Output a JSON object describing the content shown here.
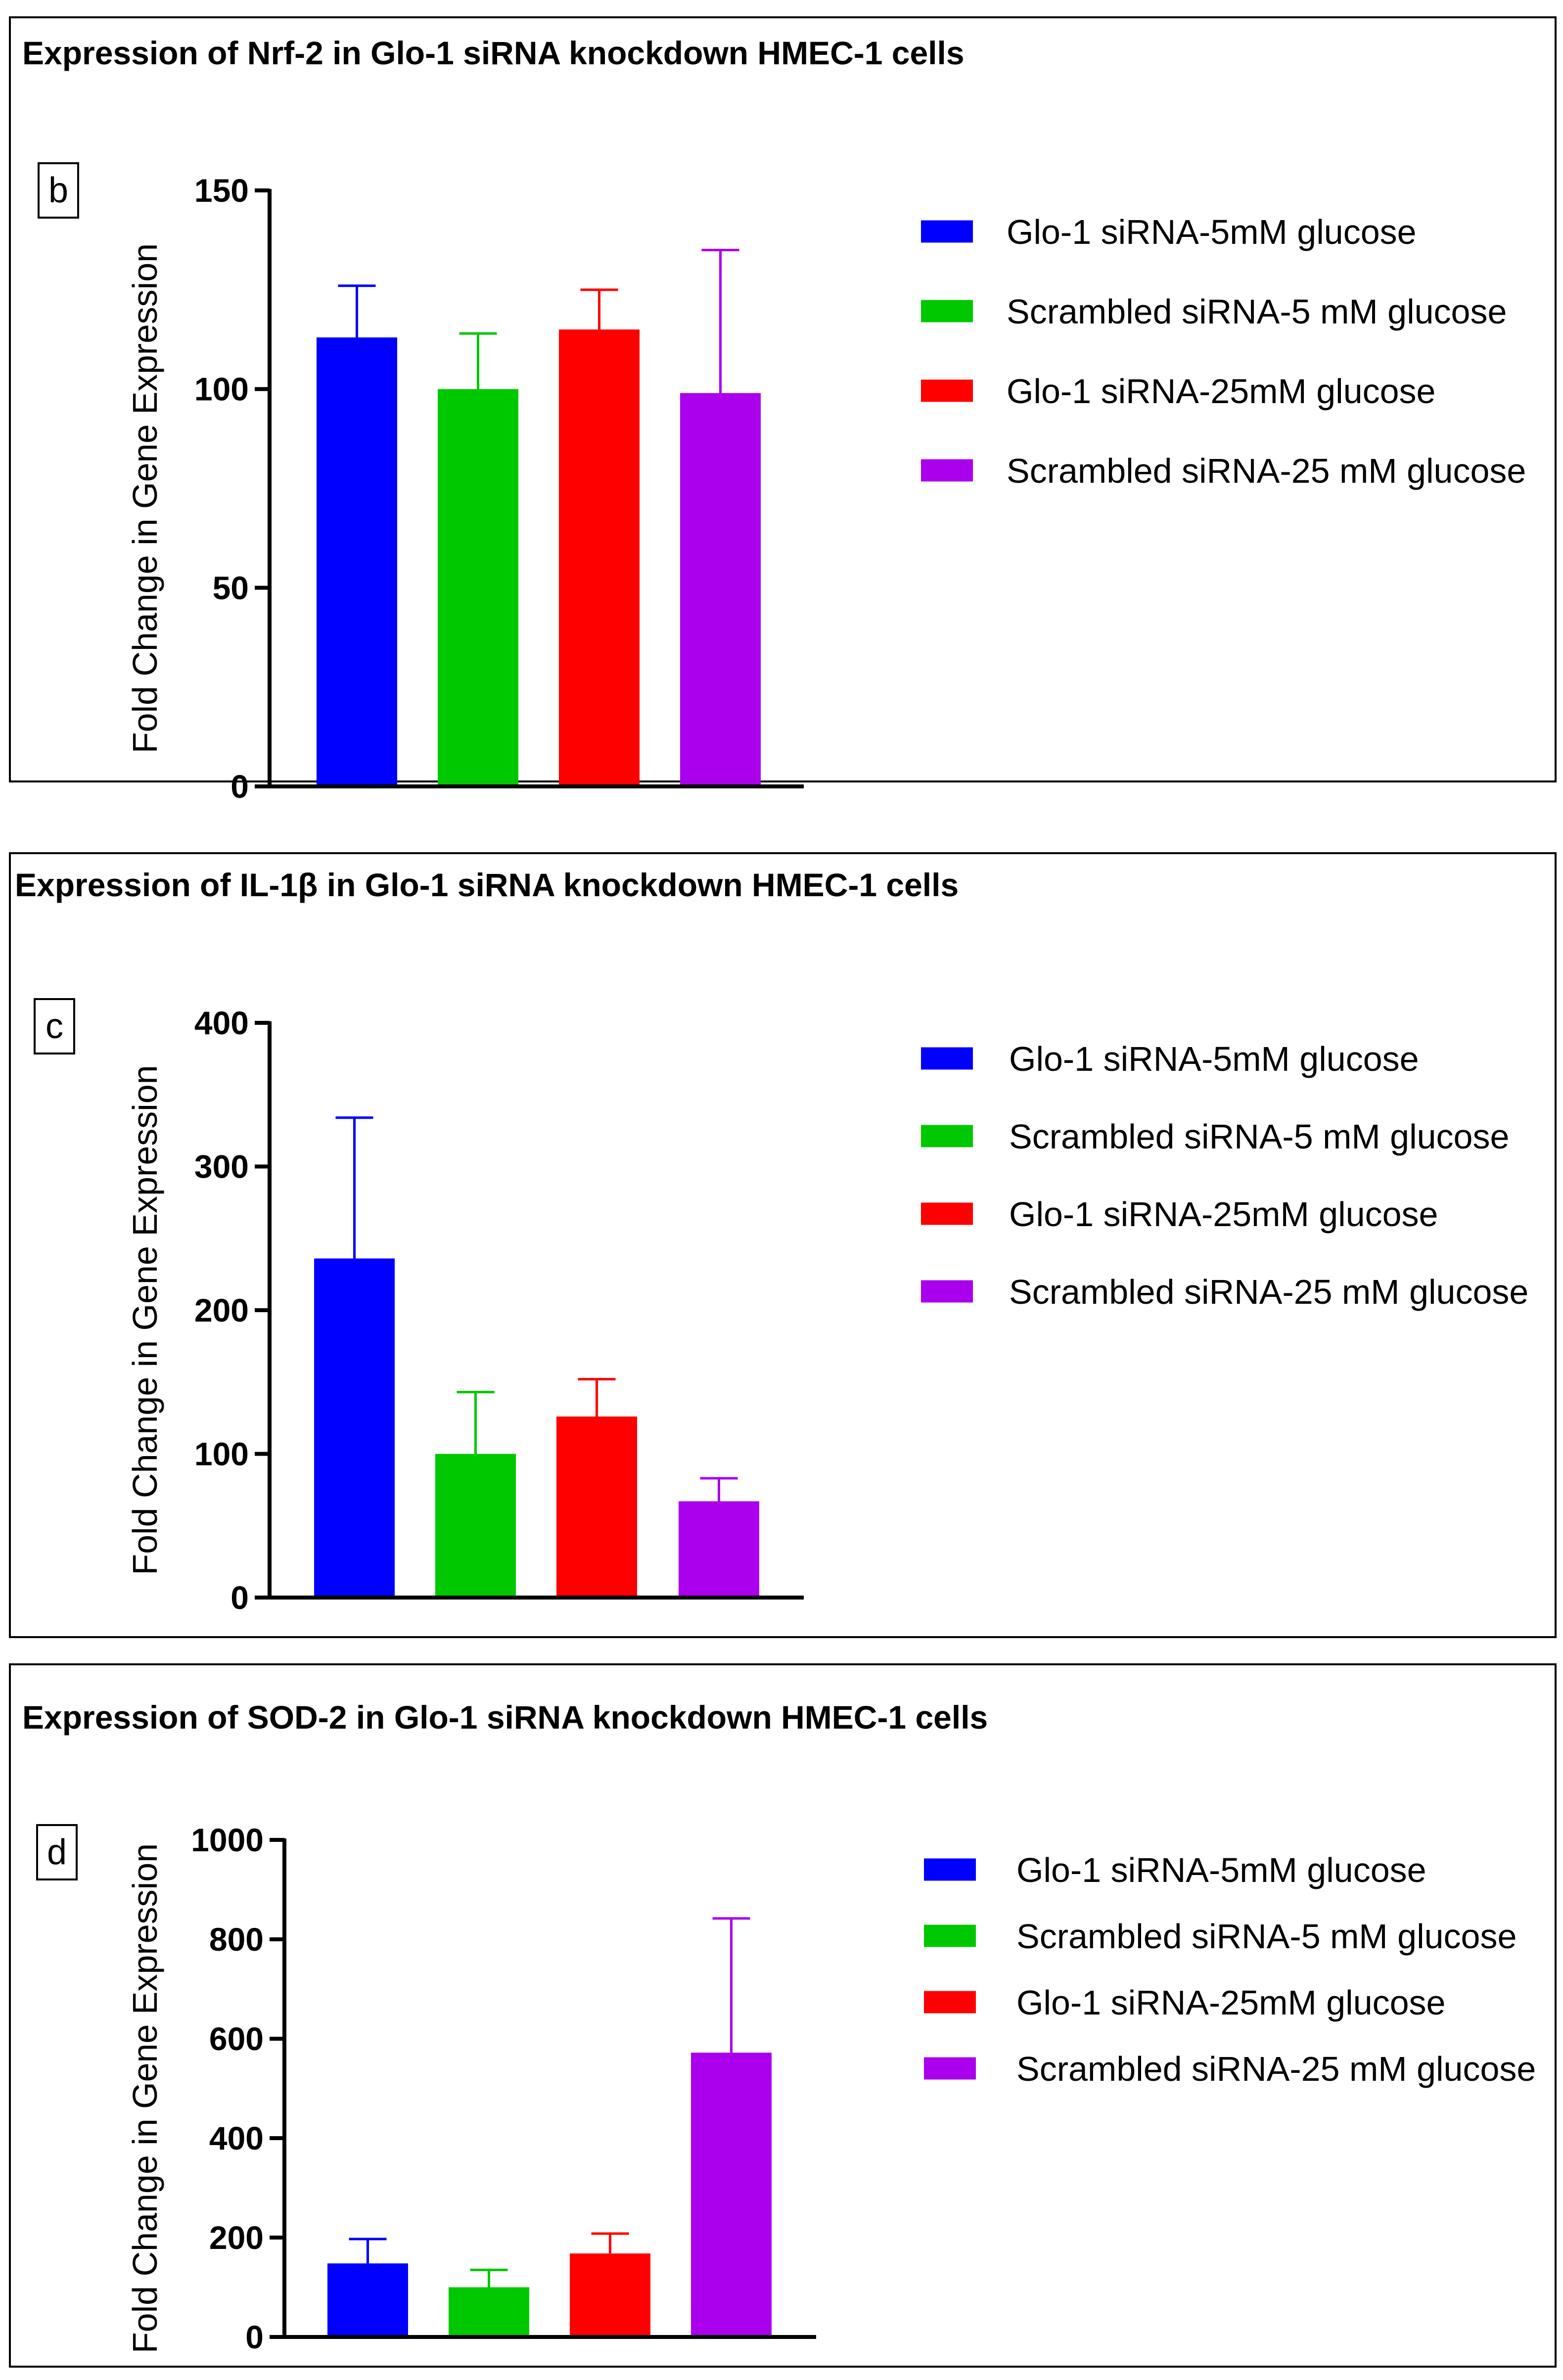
{
  "panels": [
    {
      "title": "Expression of Nrf-2 in Glo-1 siRNA knockdown HMEC-1 cells",
      "letter": "b",
      "chart_data": {
        "type": "bar",
        "title": "Expression of Nrf-2 in Glo-1 siRNA knockdown HMEC-1 cells",
        "ylabel": "Fold Change in Gene Expression",
        "xlabel": "",
        "ylim": [
          0,
          150
        ],
        "yticks": [
          0,
          50,
          100,
          150
        ],
        "legend_position": "right",
        "series": [
          {
            "name": "Glo-1 siRNA-5mM glucose",
            "color": "#0000FF",
            "value": 113,
            "error": 13
          },
          {
            "name": "Scrambled siRNA-5 mM glucose",
            "color": "#00C800",
            "value": 100,
            "error": 14
          },
          {
            "name": "Glo-1 siRNA-25mM glucose",
            "color": "#FF0000",
            "value": 115,
            "error": 10
          },
          {
            "name": "Scrambled siRNA-25 mM glucose",
            "color": "#AA00EE",
            "value": 99,
            "error": 36
          }
        ]
      }
    },
    {
      "title": "Expression of IL-1β in Glo-1 siRNA knockdown HMEC-1 cells",
      "letter": "c",
      "chart_data": {
        "type": "bar",
        "title": "Expression of IL-1β in Glo-1 siRNA knockdown HMEC-1 cells",
        "ylabel": "Fold Change in Gene Expression",
        "xlabel": "",
        "ylim": [
          0,
          400
        ],
        "yticks": [
          0,
          100,
          200,
          300,
          400
        ],
        "legend_position": "right",
        "series": [
          {
            "name": "Glo-1 siRNA-5mM glucose",
            "color": "#0000FF",
            "value": 236,
            "error": 98
          },
          {
            "name": "Scrambled siRNA-5 mM glucose",
            "color": "#00C800",
            "value": 100,
            "error": 43
          },
          {
            "name": "Glo-1 siRNA-25mM glucose",
            "color": "#FF0000",
            "value": 126,
            "error": 26
          },
          {
            "name": "Scrambled siRNA-25 mM glucose",
            "color": "#AA00EE",
            "value": 67,
            "error": 16
          }
        ]
      }
    },
    {
      "title": "Expression of SOD-2 in Glo-1 siRNA knockdown HMEC-1 cells",
      "letter": "d",
      "chart_data": {
        "type": "bar",
        "title": "Expression of SOD-2 in Glo-1 siRNA knockdown HMEC-1 cells",
        "ylabel": "Fold Change in Gene Expression",
        "xlabel": "",
        "ylim": [
          0,
          1000
        ],
        "yticks": [
          0,
          200,
          400,
          600,
          800,
          1000
        ],
        "legend_position": "right",
        "series": [
          {
            "name": "Glo-1 siRNA-5mM glucose",
            "color": "#0000FF",
            "value": 148,
            "error": 49
          },
          {
            "name": "Scrambled siRNA-5 mM glucose",
            "color": "#00C800",
            "value": 100,
            "error": 35
          },
          {
            "name": "Glo-1 siRNA-25mM glucose",
            "color": "#FF0000",
            "value": 168,
            "error": 40
          },
          {
            "name": "Scrambled siRNA-25 mM glucose",
            "color": "#AA00EE",
            "value": 572,
            "error": 270
          }
        ]
      }
    }
  ]
}
